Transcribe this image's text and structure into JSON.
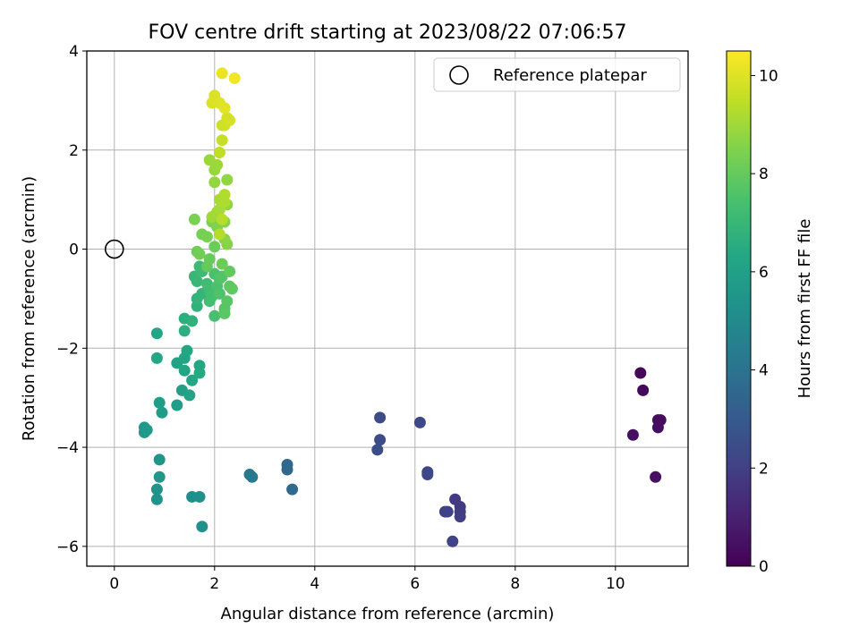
{
  "chart_data": {
    "type": "scatter",
    "title": "FOV centre drift starting at 2023/08/22 07:06:57",
    "xlabel": "Angular distance from reference (arcmin)",
    "ylabel": "Rotation from reference (arcmin)",
    "xlim": [
      -0.55,
      11.45
    ],
    "ylim": [
      -6.4,
      4.0
    ],
    "xticks": [
      0,
      2,
      4,
      6,
      8,
      10
    ],
    "yticks": [
      -6,
      -4,
      -2,
      0,
      2,
      4
    ],
    "grid": true,
    "colormap": "viridis",
    "legend": {
      "placement": "top-right",
      "entries": [
        {
          "label": "Reference platepar",
          "marker": "open-circle",
          "x": 0,
          "y": 0
        }
      ]
    },
    "colorbar": {
      "label": "Hours from first FF file",
      "range": [
        0,
        10.5
      ],
      "ticks": [
        0,
        2,
        4,
        6,
        8,
        10
      ]
    },
    "points": [
      {
        "x": 10.5,
        "y": -2.5,
        "c": 0.2
      },
      {
        "x": 10.55,
        "y": -2.85,
        "c": 0.25
      },
      {
        "x": 10.85,
        "y": -3.45,
        "c": 0.3
      },
      {
        "x": 10.9,
        "y": -3.45,
        "c": 0.35
      },
      {
        "x": 10.85,
        "y": -3.6,
        "c": 0.4
      },
      {
        "x": 10.35,
        "y": -3.75,
        "c": 0.45
      },
      {
        "x": 10.8,
        "y": -4.6,
        "c": 0.5
      },
      {
        "x": 6.8,
        "y": -5.05,
        "c": 1.8
      },
      {
        "x": 6.9,
        "y": -5.2,
        "c": 1.85
      },
      {
        "x": 6.9,
        "y": -5.3,
        "c": 1.9
      },
      {
        "x": 6.9,
        "y": -5.4,
        "c": 1.95
      },
      {
        "x": 6.6,
        "y": -5.3,
        "c": 2.0
      },
      {
        "x": 6.65,
        "y": -5.3,
        "c": 2.05
      },
      {
        "x": 6.75,
        "y": -5.9,
        "c": 2.1
      },
      {
        "x": 6.25,
        "y": -4.5,
        "c": 2.2
      },
      {
        "x": 6.25,
        "y": -4.55,
        "c": 2.25
      },
      {
        "x": 6.1,
        "y": -3.5,
        "c": 2.3
      },
      {
        "x": 5.3,
        "y": -3.4,
        "c": 2.4
      },
      {
        "x": 5.3,
        "y": -3.85,
        "c": 2.45
      },
      {
        "x": 5.25,
        "y": -4.05,
        "c": 2.5
      },
      {
        "x": 3.45,
        "y": -4.35,
        "c": 3.5
      },
      {
        "x": 3.45,
        "y": -4.45,
        "c": 3.55
      },
      {
        "x": 3.55,
        "y": -4.85,
        "c": 3.6
      },
      {
        "x": 2.7,
        "y": -4.55,
        "c": 4.2
      },
      {
        "x": 2.75,
        "y": -4.6,
        "c": 4.25
      },
      {
        "x": 1.55,
        "y": -5.0,
        "c": 5.2
      },
      {
        "x": 1.7,
        "y": -5.0,
        "c": 5.25
      },
      {
        "x": 1.75,
        "y": -5.6,
        "c": 5.3
      },
      {
        "x": 0.85,
        "y": -4.85,
        "c": 5.4
      },
      {
        "x": 0.85,
        "y": -5.05,
        "c": 5.45
      },
      {
        "x": 0.9,
        "y": -4.25,
        "c": 5.5
      },
      {
        "x": 0.9,
        "y": -4.6,
        "c": 5.55
      },
      {
        "x": 0.6,
        "y": -3.6,
        "c": 5.6
      },
      {
        "x": 0.6,
        "y": -3.7,
        "c": 5.65
      },
      {
        "x": 0.65,
        "y": -3.65,
        "c": 5.7
      },
      {
        "x": 0.9,
        "y": -3.1,
        "c": 5.8
      },
      {
        "x": 0.95,
        "y": -3.3,
        "c": 5.85
      },
      {
        "x": 1.25,
        "y": -3.15,
        "c": 5.9
      },
      {
        "x": 1.35,
        "y": -2.85,
        "c": 6.0
      },
      {
        "x": 1.5,
        "y": -2.95,
        "c": 6.05
      },
      {
        "x": 1.25,
        "y": -2.3,
        "c": 6.1
      },
      {
        "x": 1.4,
        "y": -2.2,
        "c": 6.15
      },
      {
        "x": 1.4,
        "y": -2.45,
        "c": 6.2
      },
      {
        "x": 1.45,
        "y": -2.05,
        "c": 6.25
      },
      {
        "x": 1.55,
        "y": -2.65,
        "c": 6.3
      },
      {
        "x": 1.7,
        "y": -2.35,
        "c": 6.35
      },
      {
        "x": 1.7,
        "y": -2.5,
        "c": 6.4
      },
      {
        "x": 0.85,
        "y": -1.7,
        "c": 6.3
      },
      {
        "x": 0.85,
        "y": -2.2,
        "c": 6.35
      },
      {
        "x": 1.4,
        "y": -1.4,
        "c": 6.6
      },
      {
        "x": 1.4,
        "y": -1.65,
        "c": 6.65
      },
      {
        "x": 1.55,
        "y": -1.45,
        "c": 6.7
      },
      {
        "x": 1.65,
        "y": -1.15,
        "c": 6.8
      },
      {
        "x": 1.65,
        "y": -1.0,
        "c": 6.85
      },
      {
        "x": 1.75,
        "y": -0.9,
        "c": 6.9
      },
      {
        "x": 1.6,
        "y": -0.55,
        "c": 7.0
      },
      {
        "x": 1.65,
        "y": -0.65,
        "c": 7.05
      },
      {
        "x": 1.7,
        "y": -0.35,
        "c": 7.1
      },
      {
        "x": 1.75,
        "y": -0.45,
        "c": 7.15
      },
      {
        "x": 1.85,
        "y": -0.7,
        "c": 7.2
      },
      {
        "x": 1.9,
        "y": -0.85,
        "c": 7.25
      },
      {
        "x": 1.9,
        "y": -1.05,
        "c": 7.3
      },
      {
        "x": 1.95,
        "y": -0.95,
        "c": 7.35
      },
      {
        "x": 2.0,
        "y": -1.35,
        "c": 7.4
      },
      {
        "x": 2.0,
        "y": -0.5,
        "c": 7.45
      },
      {
        "x": 2.05,
        "y": -0.75,
        "c": 7.5
      },
      {
        "x": 2.1,
        "y": -0.9,
        "c": 7.55
      },
      {
        "x": 2.1,
        "y": -0.6,
        "c": 7.6
      },
      {
        "x": 2.15,
        "y": -0.55,
        "c": 7.65
      },
      {
        "x": 2.2,
        "y": -1.2,
        "c": 7.7
      },
      {
        "x": 2.25,
        "y": -1.05,
        "c": 7.75
      },
      {
        "x": 2.2,
        "y": -1.3,
        "c": 7.8
      },
      {
        "x": 2.3,
        "y": -0.75,
        "c": 7.85
      },
      {
        "x": 2.35,
        "y": -0.8,
        "c": 7.9
      },
      {
        "x": 2.3,
        "y": -0.45,
        "c": 7.95
      },
      {
        "x": 1.85,
        "y": -0.35,
        "c": 8.0
      },
      {
        "x": 1.9,
        "y": -0.2,
        "c": 8.05
      },
      {
        "x": 2.0,
        "y": 0.05,
        "c": 8.1
      },
      {
        "x": 2.15,
        "y": -0.3,
        "c": 8.15
      },
      {
        "x": 1.65,
        "y": -0.05,
        "c": 8.2
      },
      {
        "x": 1.7,
        "y": -0.1,
        "c": 8.25
      },
      {
        "x": 1.75,
        "y": 0.3,
        "c": 8.3
      },
      {
        "x": 1.85,
        "y": 0.25,
        "c": 8.35
      },
      {
        "x": 1.6,
        "y": 0.6,
        "c": 8.4
      },
      {
        "x": 1.95,
        "y": 0.55,
        "c": 8.45
      },
      {
        "x": 2.05,
        "y": 0.45,
        "c": 8.5
      },
      {
        "x": 2.2,
        "y": 0.55,
        "c": 8.55
      },
      {
        "x": 2.25,
        "y": 0.1,
        "c": 8.6
      },
      {
        "x": 2.2,
        "y": 0.2,
        "c": 8.65
      },
      {
        "x": 2.25,
        "y": 0.9,
        "c": 8.7
      },
      {
        "x": 2.25,
        "y": 1.4,
        "c": 8.75
      },
      {
        "x": 2.0,
        "y": 1.35,
        "c": 8.8
      },
      {
        "x": 2.0,
        "y": 1.6,
        "c": 8.85
      },
      {
        "x": 1.9,
        "y": 1.8,
        "c": 8.9
      },
      {
        "x": 2.05,
        "y": 1.7,
        "c": 8.95
      },
      {
        "x": 1.95,
        "y": 0.65,
        "c": 9.0
      },
      {
        "x": 2.05,
        "y": 0.75,
        "c": 9.05
      },
      {
        "x": 2.1,
        "y": 0.8,
        "c": 9.1
      },
      {
        "x": 2.1,
        "y": 1.0,
        "c": 9.15
      },
      {
        "x": 2.2,
        "y": 0.95,
        "c": 9.2
      },
      {
        "x": 2.2,
        "y": 1.1,
        "c": 9.25
      },
      {
        "x": 2.1,
        "y": 0.3,
        "c": 9.3
      },
      {
        "x": 2.15,
        "y": 0.6,
        "c": 9.35
      },
      {
        "x": 2.1,
        "y": 1.95,
        "c": 9.5
      },
      {
        "x": 2.15,
        "y": 2.2,
        "c": 9.6
      },
      {
        "x": 2.15,
        "y": 2.5,
        "c": 9.7
      },
      {
        "x": 2.2,
        "y": 2.5,
        "c": 9.75
      },
      {
        "x": 2.25,
        "y": 2.65,
        "c": 9.8
      },
      {
        "x": 2.3,
        "y": 2.6,
        "c": 9.85
      },
      {
        "x": 1.95,
        "y": 2.95,
        "c": 9.9
      },
      {
        "x": 2.0,
        "y": 3.1,
        "c": 9.95
      },
      {
        "x": 2.1,
        "y": 2.95,
        "c": 10.0
      },
      {
        "x": 2.2,
        "y": 2.85,
        "c": 10.05
      },
      {
        "x": 2.15,
        "y": 3.55,
        "c": 10.2
      },
      {
        "x": 2.4,
        "y": 3.45,
        "c": 10.3
      }
    ]
  }
}
